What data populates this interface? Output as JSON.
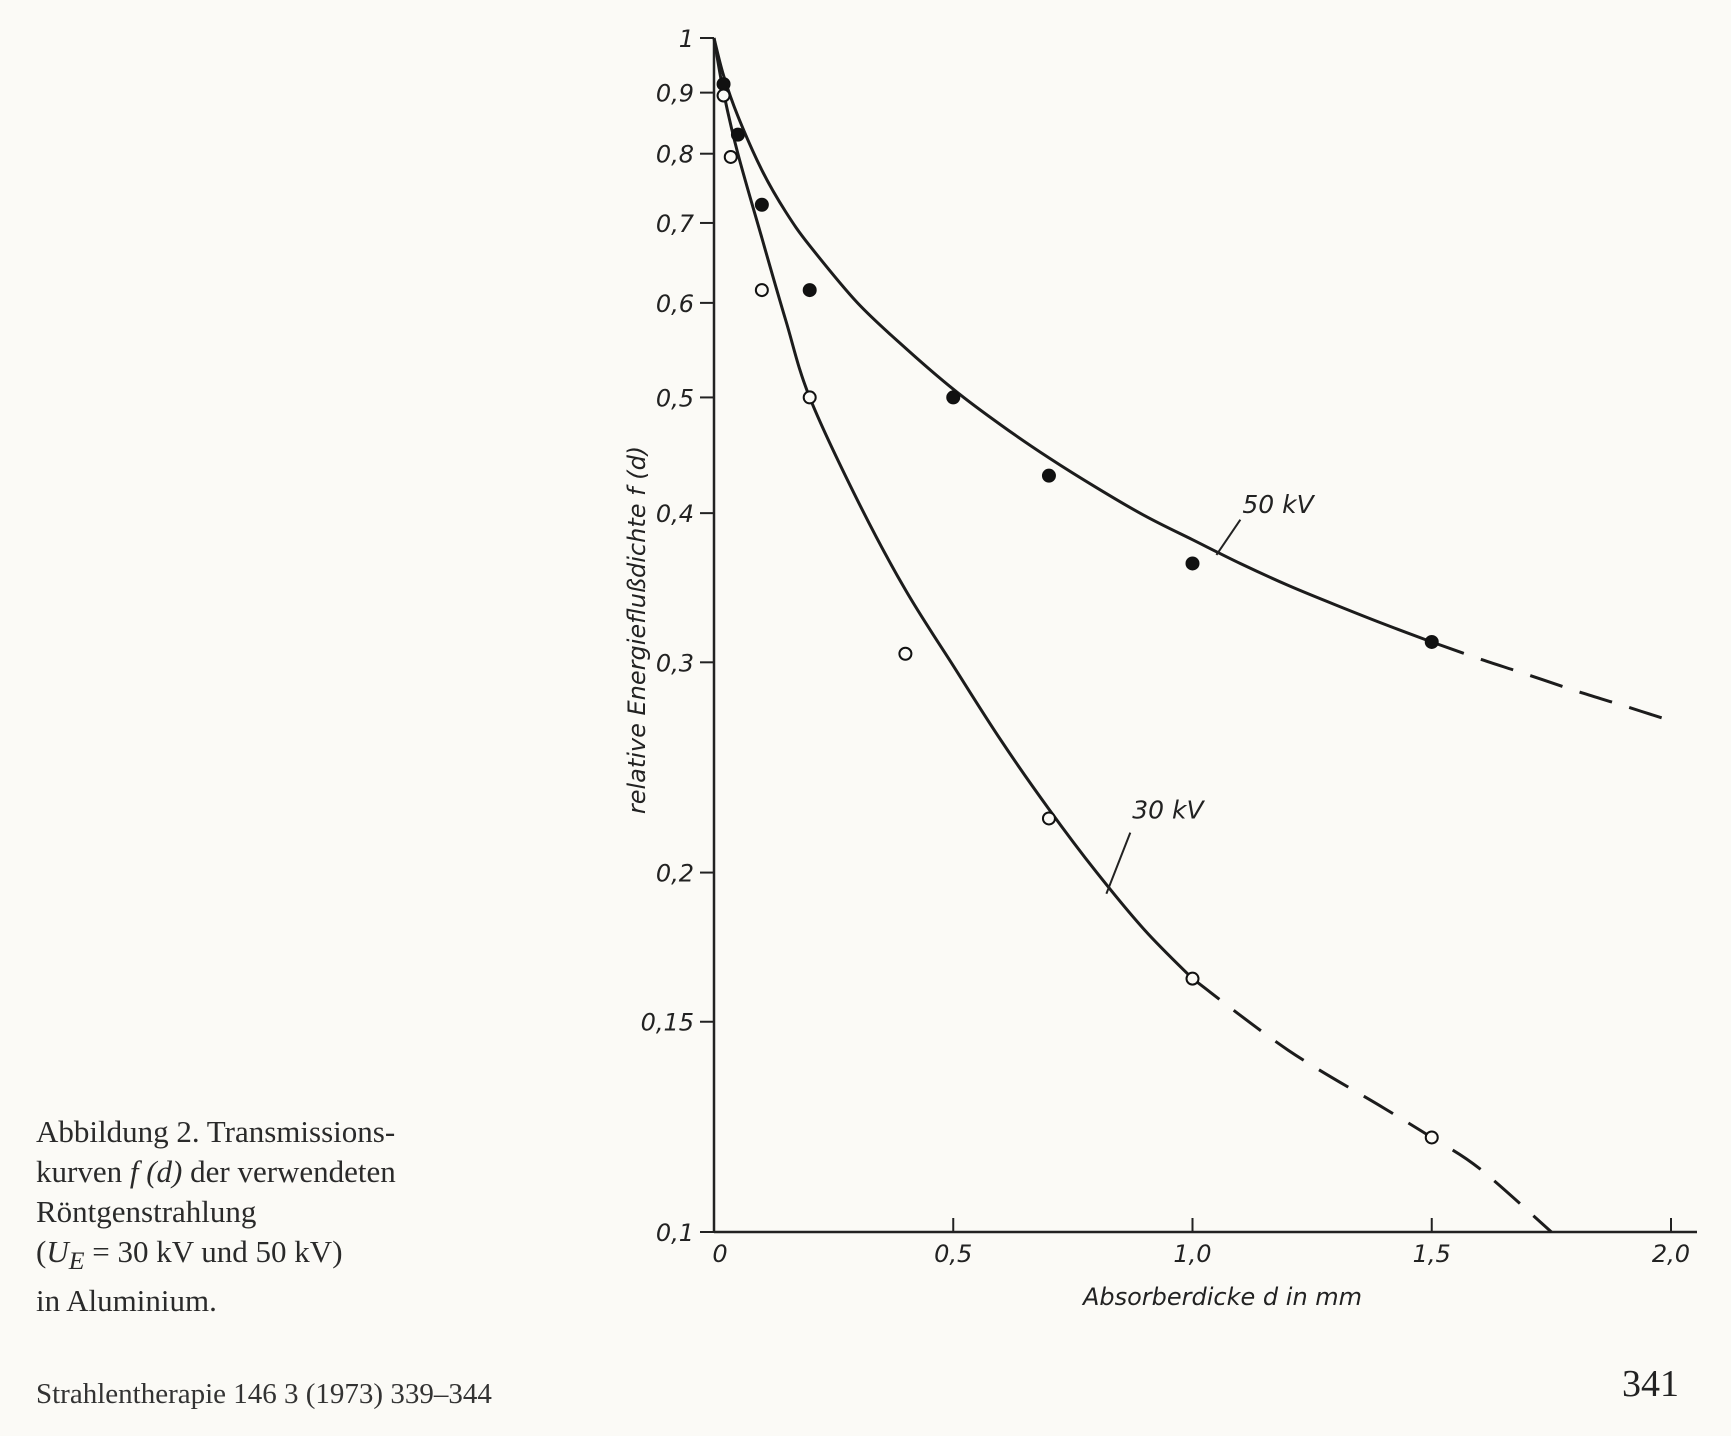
{
  "chart_data": {
    "type": "line",
    "x_axis": {
      "label": "Absorberdicke d in mm",
      "range": [
        0,
        2.0
      ],
      "ticks": [
        0,
        0.5,
        1.0,
        1.5,
        2.0
      ],
      "tick_labels": [
        "0",
        "0,5",
        "1,0",
        "1,5",
        "2,0"
      ]
    },
    "y_axis": {
      "label": "relative Energieflußdichte f (d)",
      "scale": "log",
      "range": [
        0.1,
        1
      ],
      "ticks": [
        0.1,
        0.15,
        0.2,
        0.3,
        0.4,
        0.5,
        0.6,
        0.7,
        0.8,
        0.9,
        1
      ],
      "tick_labels": [
        "0,1",
        "0,15",
        "0,2",
        "0,3",
        "0,4",
        "0,5",
        "0,6",
        "0,7",
        "0,8",
        "0,9",
        "1"
      ]
    },
    "grid": false,
    "series": [
      {
        "name": "50 kV",
        "marker": "filled-circle",
        "points": [
          [
            0.02,
            0.915
          ],
          [
            0.05,
            0.83
          ],
          [
            0.1,
            0.725
          ],
          [
            0.2,
            0.615
          ],
          [
            0.5,
            0.5
          ],
          [
            0.7,
            0.43
          ],
          [
            1.0,
            0.363
          ],
          [
            1.5,
            0.312
          ]
        ],
        "curve_solid": [
          [
            0,
            1.0
          ],
          [
            0.02,
            0.93
          ],
          [
            0.05,
            0.86
          ],
          [
            0.1,
            0.775
          ],
          [
            0.15,
            0.715
          ],
          [
            0.2,
            0.67
          ],
          [
            0.3,
            0.6
          ],
          [
            0.4,
            0.55
          ],
          [
            0.5,
            0.508
          ],
          [
            0.6,
            0.474
          ],
          [
            0.7,
            0.445
          ],
          [
            0.8,
            0.42
          ],
          [
            0.9,
            0.398
          ],
          [
            1.0,
            0.38
          ],
          [
            1.1,
            0.363
          ],
          [
            1.2,
            0.348
          ],
          [
            1.3,
            0.335
          ],
          [
            1.4,
            0.323
          ],
          [
            1.5,
            0.312
          ]
        ],
        "curve_dashed": [
          [
            1.5,
            0.312
          ],
          [
            1.6,
            0.302
          ],
          [
            1.7,
            0.293
          ],
          [
            1.8,
            0.284
          ],
          [
            1.9,
            0.276
          ],
          [
            2.0,
            0.268
          ]
        ]
      },
      {
        "name": "30 kV",
        "marker": "open-circle",
        "points": [
          [
            0.02,
            0.895
          ],
          [
            0.035,
            0.795
          ],
          [
            0.1,
            0.615
          ],
          [
            0.2,
            0.5
          ],
          [
            0.4,
            0.305
          ],
          [
            0.7,
            0.222
          ],
          [
            1.0,
            0.163
          ],
          [
            1.5,
            0.12
          ]
        ],
        "curve_solid": [
          [
            0,
            1.0
          ],
          [
            0.02,
            0.9
          ],
          [
            0.05,
            0.8
          ],
          [
            0.1,
            0.68
          ],
          [
            0.15,
            0.58
          ],
          [
            0.2,
            0.5
          ],
          [
            0.3,
            0.41
          ],
          [
            0.4,
            0.345
          ],
          [
            0.5,
            0.298
          ],
          [
            0.6,
            0.258
          ],
          [
            0.7,
            0.226
          ],
          [
            0.8,
            0.2
          ],
          [
            0.9,
            0.179
          ],
          [
            1.0,
            0.163
          ]
        ],
        "curve_dashed": [
          [
            1.0,
            0.163
          ],
          [
            1.2,
            0.142
          ],
          [
            1.4,
            0.127
          ],
          [
            1.5,
            0.12
          ],
          [
            1.6,
            0.113
          ],
          [
            1.75,
            0.1
          ]
        ]
      }
    ]
  },
  "caption": {
    "line1": "Abbildung 2. Transmissions-",
    "line2_pre": "kurven ",
    "line2_math": "f (d)",
    "line2_post": " der verwendeten",
    "line3": "Röntgenstrahlung",
    "line4_open": "(",
    "line4_var": "U",
    "line4_sub": "E",
    "line4_rest": " = 30 kV und 50 kV)",
    "line5": "in Aluminium."
  },
  "footer": {
    "citation": "Strahlentherapie 146  3 (1973) 339–344",
    "page_number": "341"
  }
}
